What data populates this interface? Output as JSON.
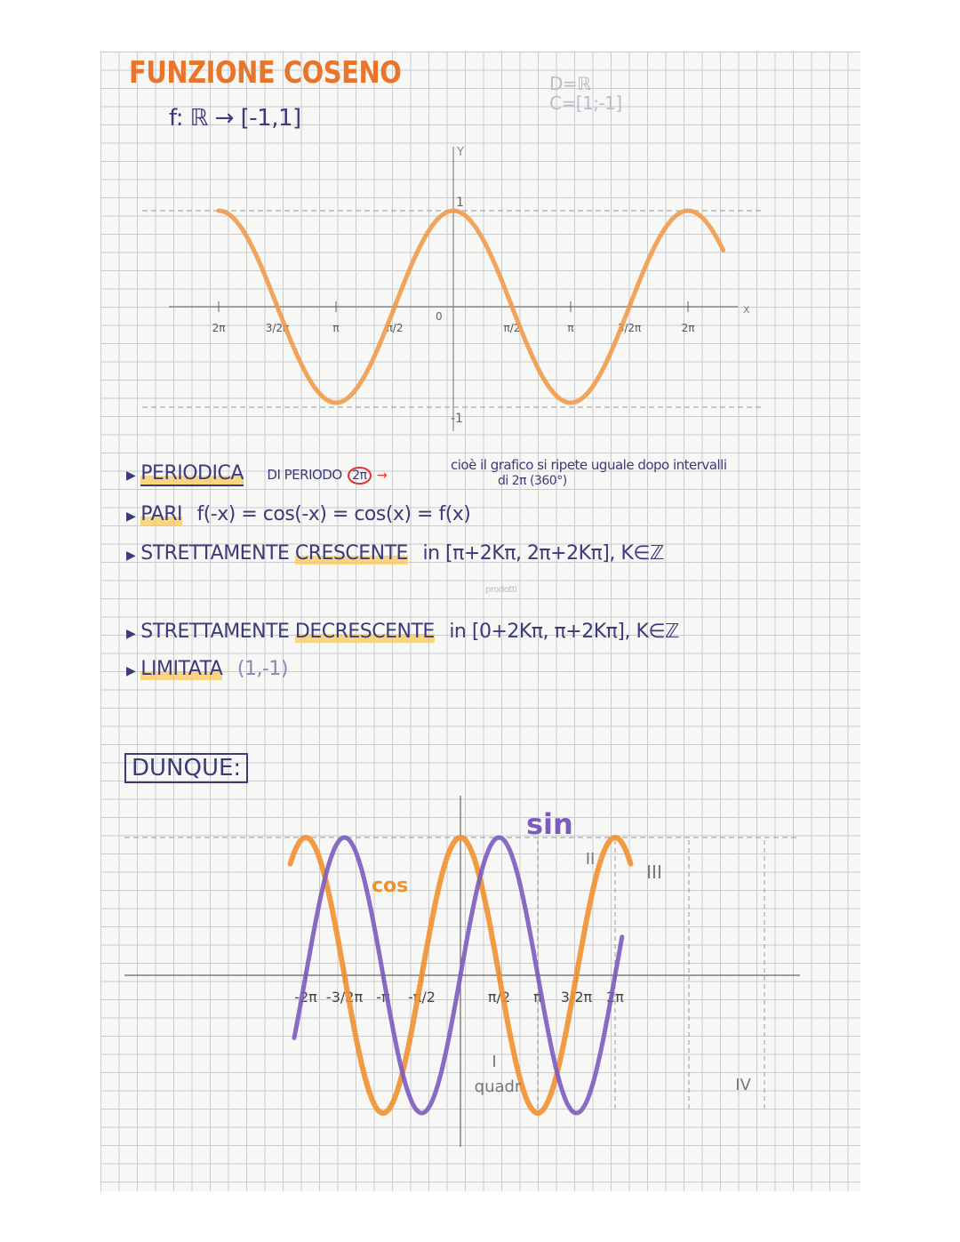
{
  "header": {
    "title": "FUNZIONE COSENO",
    "mapping": "f: ℝ → [-1,1]",
    "faint_note_1": "D=ℝ",
    "faint_note_2": "C=[1;-1]"
  },
  "graph1": {
    "function": "cos(x)",
    "axis_x": "x",
    "axis_y": "Y",
    "y_max_label": "1",
    "y_min_label": "-1",
    "origin_label": "0",
    "ticks": [
      "2π",
      "3/2π",
      "π",
      "π/2",
      "π/2",
      "π",
      "3/2π",
      "2π"
    ],
    "x_range_pi": [
      -2,
      2.3
    ],
    "color": "#f09a4a"
  },
  "properties": [
    {
      "label": "PERIODICA",
      "text": "DI PERIODO",
      "circled": "2π",
      "note": "cioè il grafico si ripete uguale dopo intervalli",
      "note2": "di 2π (360°)"
    },
    {
      "label": "PARI",
      "text": "f(-x) = cos(-x) = cos(x) = f(x)"
    },
    {
      "label": "STRETTAMENTE",
      "label_hl": "CRESCENTE",
      "text": "in [π+2Kπ, 2π+2Kπ], K∈ℤ",
      "note": "prodotti"
    },
    {
      "label": "STRETTAMENTE",
      "label_hl": "DECRESCENTE",
      "text": "in [0+2Kπ, π+2Kπ], K∈ℤ"
    },
    {
      "label": "LIMITATA",
      "text": "(1,-1)"
    }
  ],
  "summary": {
    "box_label": "DUNQUE:",
    "sin_label": "sin",
    "cos_label": "cos",
    "quadrants": [
      "I",
      "II",
      "III",
      "IV"
    ],
    "quadrant_word": "quadr",
    "ticks": [
      "-2π",
      "-3/2π",
      "-π",
      "-π/2",
      "π/2",
      "π",
      "3/2π",
      "2π"
    ],
    "x_range_pi": [
      -2.2,
      2.2
    ],
    "cos_color": "#f0902f",
    "sin_color": "#7b5bbf"
  }
}
